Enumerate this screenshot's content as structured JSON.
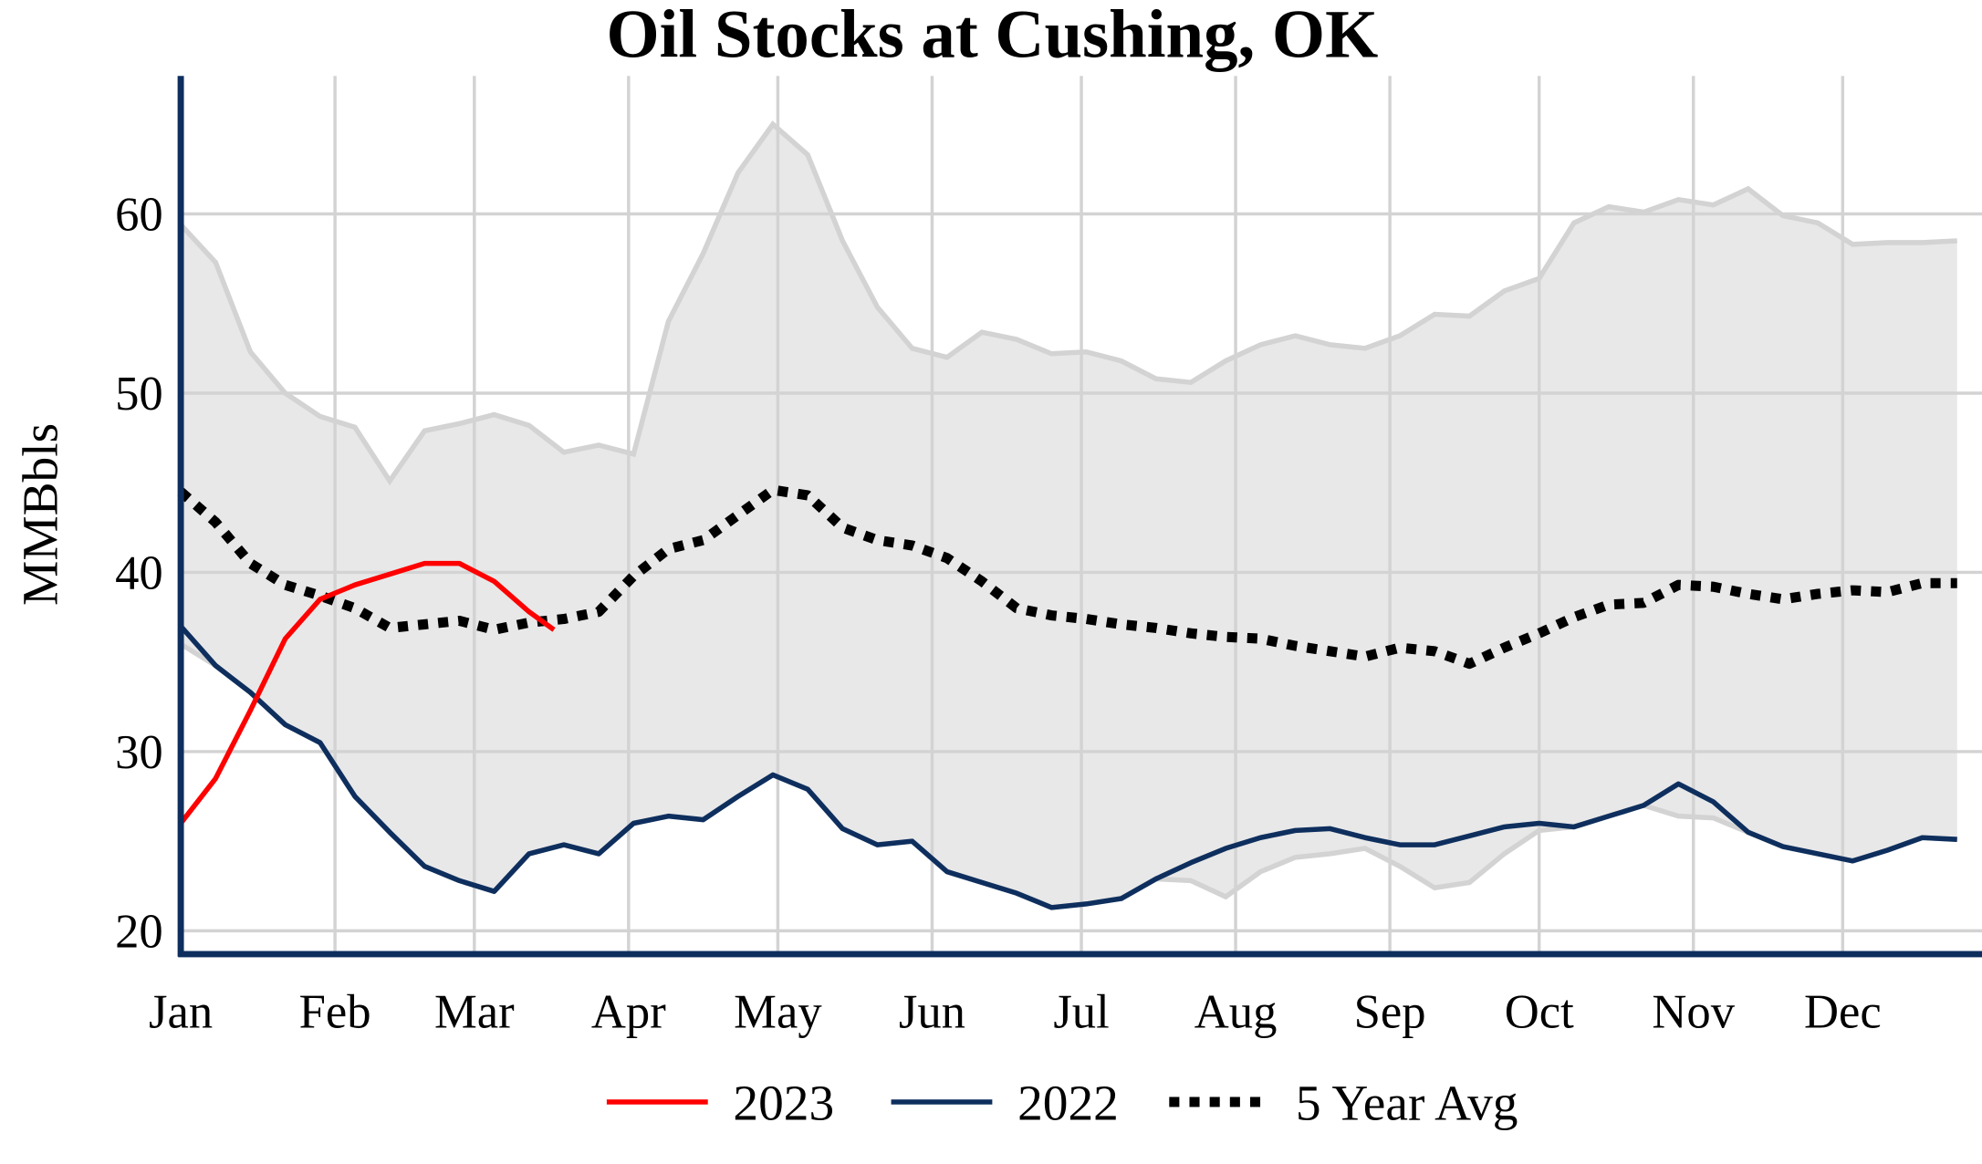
{
  "chart_data": {
    "type": "line",
    "title": "Oil Stocks at Cushing, OK",
    "y_label": "MMBbls",
    "x": [
      0,
      7,
      14,
      21,
      28,
      35,
      42,
      49,
      56,
      63,
      70,
      77,
      84,
      91,
      98,
      105,
      112,
      119,
      126,
      133,
      140,
      147,
      154,
      161,
      168,
      175,
      182,
      189,
      196,
      203,
      210,
      217,
      224,
      231,
      238,
      245,
      252,
      259,
      266,
      273,
      280,
      287,
      294,
      301,
      308,
      315,
      322,
      329,
      336,
      343,
      350,
      357
    ],
    "xlim": [
      0,
      362
    ],
    "xticks": [
      {
        "value": 0,
        "label": "Jan"
      },
      {
        "value": 31,
        "label": "Feb"
      },
      {
        "value": 59,
        "label": "Mar"
      },
      {
        "value": 90,
        "label": "Apr"
      },
      {
        "value": 120,
        "label": "May"
      },
      {
        "value": 151,
        "label": "Jun"
      },
      {
        "value": 181,
        "label": "Jul"
      },
      {
        "value": 212,
        "label": "Aug"
      },
      {
        "value": 243,
        "label": "Sep"
      },
      {
        "value": 273,
        "label": "Oct"
      },
      {
        "value": 304,
        "label": "Nov"
      },
      {
        "value": 334,
        "label": "Dec"
      }
    ],
    "ylim": [
      18.7,
      67.7
    ],
    "yticks": [
      20,
      30,
      40,
      50,
      60
    ],
    "grid": true,
    "band": {
      "color": "#e8e8e8",
      "edge_color": "#d3d3d3",
      "upper": [
        59.4,
        57.3,
        52.3,
        50.0,
        48.7,
        48.1,
        45.1,
        47.9,
        48.3,
        48.8,
        48.2,
        46.7,
        47.1,
        46.6,
        54.0,
        57.8,
        62.3,
        65.0,
        63.3,
        58.5,
        54.8,
        52.5,
        52.0,
        53.4,
        53.0,
        52.2,
        52.3,
        51.8,
        50.8,
        50.6,
        51.8,
        52.7,
        53.2,
        52.7,
        52.5,
        53.2,
        54.4,
        54.3,
        55.7,
        56.4,
        59.5,
        60.4,
        60.1,
        60.8,
        60.5,
        61.4,
        59.9,
        59.5,
        58.3,
        58.4,
        58.4,
        58.5
      ],
      "lower": [
        36.0,
        34.8,
        33.3,
        31.5,
        30.5,
        27.5,
        25.5,
        23.6,
        22.8,
        22.2,
        24.3,
        24.8,
        24.3,
        26.0,
        26.4,
        26.2,
        27.5,
        28.7,
        27.9,
        25.7,
        24.8,
        25.0,
        23.3,
        22.7,
        22.1,
        21.3,
        21.5,
        21.8,
        22.9,
        22.8,
        21.9,
        23.3,
        24.1,
        24.3,
        24.6,
        23.6,
        22.4,
        22.7,
        24.3,
        25.6,
        25.8,
        26.4,
        27.0,
        26.4,
        26.3,
        25.5,
        24.7,
        24.3,
        23.9,
        24.5,
        25.2,
        25.1
      ]
    },
    "series": [
      {
        "name": "2023",
        "color": "#ff0000",
        "style": "solid",
        "x": [
          0,
          7,
          14,
          21,
          28,
          35,
          42,
          49,
          56,
          63,
          70,
          75
        ],
        "values": [
          26.0,
          28.5,
          32.3,
          36.3,
          38.5,
          39.3,
          39.9,
          40.5,
          40.5,
          39.5,
          37.8,
          36.8
        ]
      },
      {
        "name": "2022",
        "color": "#0e2f5e",
        "style": "solid",
        "values": [
          37.0,
          34.8,
          33.3,
          31.5,
          30.5,
          27.5,
          25.5,
          23.6,
          22.8,
          22.2,
          24.3,
          24.8,
          24.3,
          26.0,
          26.4,
          26.2,
          27.5,
          28.7,
          27.9,
          25.7,
          24.8,
          25.0,
          23.3,
          22.7,
          22.1,
          21.3,
          21.5,
          21.8,
          22.9,
          23.8,
          24.6,
          25.2,
          25.6,
          25.7,
          25.2,
          24.8,
          24.8,
          25.3,
          25.8,
          26.0,
          25.8,
          26.4,
          27.0,
          28.2,
          27.2,
          25.5,
          24.7,
          24.3,
          23.9,
          24.5,
          25.2,
          25.1
        ]
      },
      {
        "name": "5 Year Avg",
        "color": "#000000",
        "style": "dotted",
        "values": [
          44.5,
          42.8,
          40.5,
          39.3,
          38.7,
          38.0,
          36.9,
          37.1,
          37.3,
          36.8,
          37.2,
          37.4,
          37.8,
          39.8,
          41.3,
          41.8,
          43.2,
          44.6,
          44.3,
          42.5,
          41.8,
          41.5,
          40.8,
          39.5,
          38.0,
          37.6,
          37.4,
          37.1,
          36.9,
          36.6,
          36.4,
          36.3,
          35.9,
          35.6,
          35.3,
          35.8,
          35.6,
          34.9,
          35.8,
          36.6,
          37.5,
          38.2,
          38.3,
          39.3,
          39.2,
          38.8,
          38.5,
          38.8,
          39.0,
          38.9,
          39.4,
          39.4
        ]
      }
    ],
    "axis_color": "#0e2f5e"
  }
}
